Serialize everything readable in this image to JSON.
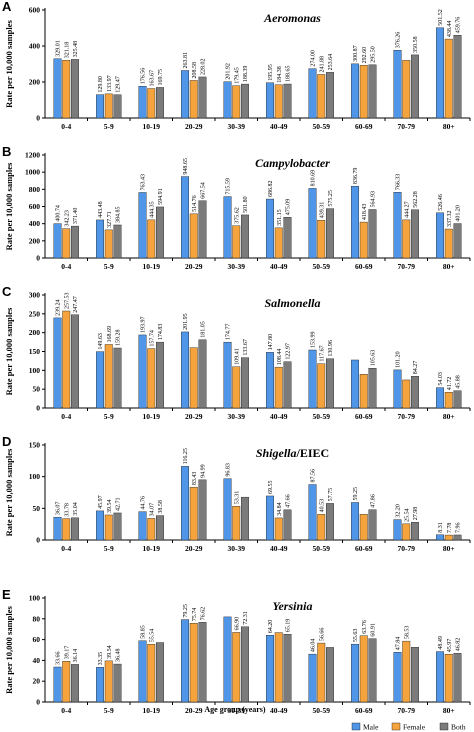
{
  "legend": {
    "male": "Male",
    "female": "Female",
    "both": "Both"
  },
  "x_axis_title": "Age group (years)",
  "colors": {
    "male": "#4f95e8",
    "female": "#f5a33c",
    "both": "#7b7b7b"
  },
  "chart_data": [
    {
      "type": "bar",
      "panel": "A",
      "title": "Aeromonas",
      "ylabel": "Rate per 10,000 samples",
      "ylim": [
        0,
        600
      ],
      "yticks": [
        0,
        200,
        400,
        600
      ],
      "categories": [
        "0-4",
        "5-9",
        "10-19",
        "20-29",
        "30-39",
        "40-49",
        "50-59",
        "60-69",
        "70-79",
        "80+"
      ],
      "series": [
        {
          "name": "Male",
          "values": [
            329.01,
            129.8,
            176.56,
            263.81,
            201.92,
            195.95,
            274.0,
            300.87,
            376.26,
            501.52
          ],
          "labels": [
            "329.01",
            "129.80",
            "176.56",
            "263.81",
            "201.92",
            "195.95",
            "274.00",
            "300.87",
            "376.26",
            "501.52"
          ]
        },
        {
          "name": "Female",
          "values": [
            321.18,
            133.97,
            163.67,
            208.58,
            179.45,
            184.38,
            241.88,
            292.6,
            320.0,
            438.44
          ],
          "labels": [
            "321.18",
            "133.97",
            "163.67",
            "208.58",
            "179.45",
            "184.38",
            "241.88",
            "292.60",
            "",
            "438.44"
          ]
        },
        {
          "name": "Both",
          "values": [
            325.48,
            129.47,
            169.75,
            228.02,
            188.39,
            188.65,
            253.64,
            295.5,
            350.58,
            459.76
          ],
          "labels": [
            "325.48",
            "129.47",
            "169.75",
            "228.02",
            "188.39",
            "188.65",
            "253.64",
            "295.50",
            "350.58",
            "459.76"
          ]
        }
      ]
    },
    {
      "type": "bar",
      "panel": "B",
      "title": "Campylobacter",
      "ylabel": "Rate per 10,000 samples",
      "ylim": [
        0,
        1200
      ],
      "yticks": [
        0,
        200,
        400,
        600,
        800,
        1000,
        1200
      ],
      "categories": [
        "0-4",
        "5-9",
        "10-19",
        "20-29",
        "30-39",
        "40-49",
        "50-59",
        "60-69",
        "70-79",
        "80+"
      ],
      "series": [
        {
          "name": "Male",
          "values": [
            400.74,
            443.48,
            763.43,
            948.65,
            715.59,
            686.82,
            810.69,
            836.79,
            766.33,
            526.46
          ],
          "labels": [
            "400.74",
            "443.48",
            "763.43",
            "948.65",
            "715.59",
            "686.82",
            "810.69",
            "836.79",
            "766.33",
            "526.46"
          ]
        },
        {
          "name": "Female",
          "values": [
            342.23,
            327.71,
            444.35,
            514.76,
            375.62,
            351.15,
            439.31,
            418.43,
            444.27,
            337.32
          ],
          "labels": [
            "342.23",
            "327.71",
            "444.35",
            "514.76",
            "375.62",
            "351.15",
            "439.31",
            "418.43",
            "444.27",
            "337.32"
          ]
        },
        {
          "name": "Both",
          "values": [
            371.4,
            384.85,
            594.91,
            667.54,
            501.8,
            475.09,
            575.25,
            564.93,
            562.28,
            401.2
          ],
          "labels": [
            "371.40",
            "384.85",
            "594.91",
            "667.54",
            "501.80",
            "475.09",
            "575.25",
            "564.93",
            "562.28",
            "401.20"
          ]
        }
      ]
    },
    {
      "type": "bar",
      "panel": "C",
      "title": "Salmonella",
      "ylabel": "Rate per 10,000 samples",
      "ylim": [
        0,
        300
      ],
      "yticks": [
        0,
        50,
        100,
        150,
        200,
        250,
        300
      ],
      "categories": [
        "0-4",
        "5-9",
        "10-19",
        "20-29",
        "30-39",
        "40-49",
        "50-59",
        "60-69",
        "70-79",
        "80+"
      ],
      "series": [
        {
          "name": "Male",
          "values": [
            239.24,
            149.63,
            193.97,
            201.95,
            174.77,
            147.8,
            153.99,
            127.49,
            101.2,
            54.03
          ],
          "labels": [
            "239.24",
            "149.63",
            "193.97",
            "201.95",
            "174.77",
            "147.80",
            "153.99",
            "",
            "101.20",
            "54.03"
          ]
        },
        {
          "name": "Female",
          "values": [
            257.53,
            168.69,
            157.74,
            160.26,
            109.41,
            108.44,
            117.67,
            89.73,
            74.49,
            41.72
          ],
          "labels": [
            "257.53",
            "168.69",
            "157.74",
            "",
            "109.41",
            "108.44",
            "117.67",
            "",
            "",
            "41.72"
          ]
        },
        {
          "name": "Both",
          "values": [
            247.47,
            159.28,
            174.83,
            181.05,
            133.67,
            122.97,
            130.96,
            105.63,
            84.27,
            45.88
          ],
          "labels": [
            "247.47",
            "159.28",
            "174.83",
            "181.05",
            "133.67",
            "122.97",
            "130.96",
            "105.63",
            "84.27",
            "45.88"
          ]
        }
      ]
    },
    {
      "type": "bar",
      "panel": "D",
      "title_main": "Shigella",
      "title_suffix": "/EIEC",
      "ylabel": "Rate per 10,000 samples",
      "ylim": [
        0,
        150
      ],
      "yticks": [
        0,
        50,
        100,
        150
      ],
      "categories": [
        "0-4",
        "5-9",
        "10-19",
        "20-29",
        "30-39",
        "40-49",
        "50-59",
        "60-69",
        "70-79",
        "80+"
      ],
      "series": [
        {
          "name": "Male",
          "values": [
            36.07,
            45.97,
            44.76,
            116.25,
            96.83,
            69.55,
            87.56,
            59.25,
            32.2,
            8.31
          ],
          "labels": [
            "36.07",
            "45.97",
            "44.76",
            "116.25",
            "96.83",
            "69.55",
            "87.56",
            "59.25",
            "32.20",
            "8.31"
          ]
        },
        {
          "name": "Female",
          "values": [
            33.78,
            39.54,
            34.07,
            83.43,
            53.31,
            34.84,
            40.53,
            40.53,
            25.54,
            7.78
          ],
          "labels": [
            "33.78",
            "39.54",
            "34.07",
            "83.43",
            "53.31",
            "34.84",
            "40.53",
            "",
            "25.54",
            "7.78"
          ]
        },
        {
          "name": "Both",
          "values": [
            35.04,
            42.71,
            38.58,
            94.99,
            67.66,
            47.66,
            57.75,
            47.86,
            27.98,
            7.96
          ],
          "labels": [
            "35.04",
            "42.71",
            "38.58",
            "94.99",
            "",
            "47.66",
            "57.75",
            "47.86",
            "27.98",
            "7.96"
          ]
        }
      ]
    },
    {
      "type": "bar",
      "panel": "E",
      "title": "Yersinia",
      "ylabel": "Rate per 10,000 samples",
      "ylim": [
        0,
        100
      ],
      "yticks": [
        0,
        20,
        40,
        60,
        80,
        100
      ],
      "categories": [
        "0-4",
        "5-9",
        "10-19",
        "20-29",
        "30-39",
        "40-49",
        "50-59",
        "60-69",
        "70-79",
        "80+"
      ],
      "series": [
        {
          "name": "Male",
          "values": [
            33.66,
            33.35,
            58.85,
            79.25,
            81.84,
            64.2,
            46.04,
            55.63,
            47.84,
            48.49
          ],
          "labels": [
            "33.66",
            "33.35",
            "58.85",
            "79.25",
            "",
            "64.20",
            "46.04",
            "55.63",
            "47.84",
            "48.49"
          ]
        },
        {
          "name": "Female",
          "values": [
            39.17,
            39.54,
            55.54,
            75.74,
            66.9,
            66.75,
            56.66,
            63.76,
            58.53,
            45.97
          ],
          "labels": [
            "39.17",
            "39.54",
            "55.54",
            "75.74",
            "66.90",
            "",
            "56.66",
            "63.76",
            "58.53",
            "45.97"
          ]
        },
        {
          "name": "Both",
          "values": [
            36.14,
            36.48,
            57.19,
            76.62,
            72.31,
            65.19,
            52.46,
            60.91,
            52.6,
            46.82
          ],
          "labels": [
            "36.14",
            "36.48",
            "",
            "76.62",
            "72.31",
            "65.19",
            "",
            "60.91",
            "",
            "46.82"
          ]
        }
      ]
    }
  ]
}
